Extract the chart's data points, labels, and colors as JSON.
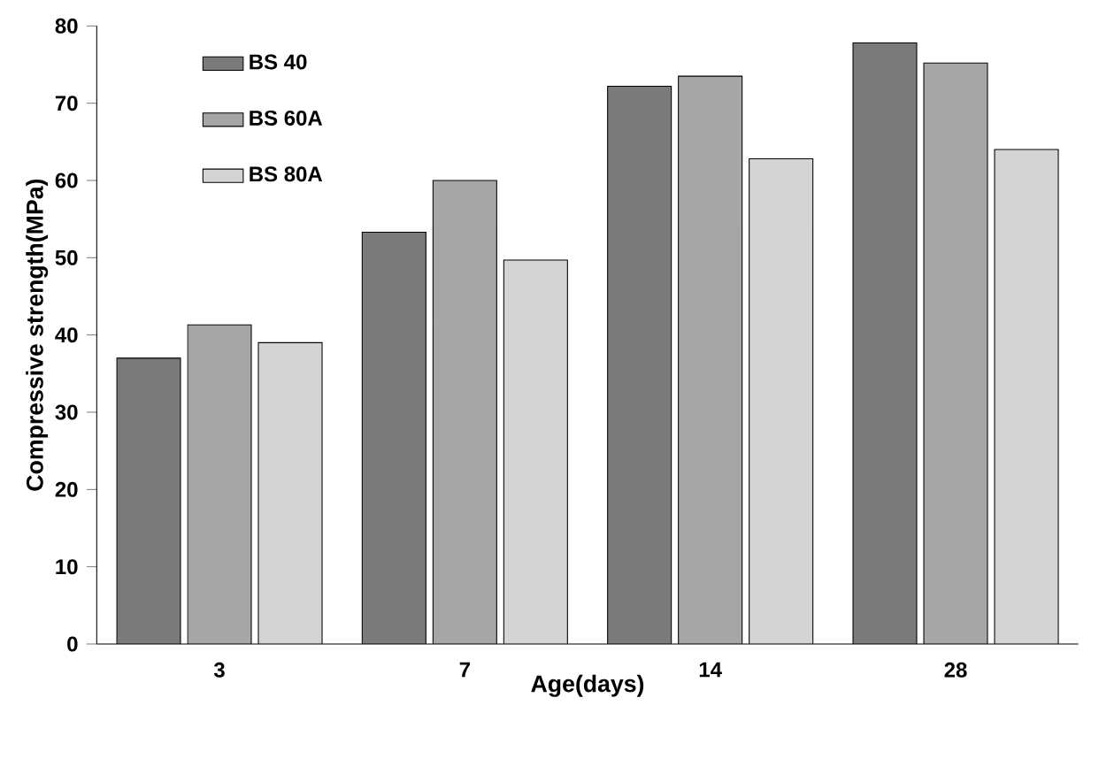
{
  "chart_data": {
    "type": "bar",
    "xlabel": "Age(days)",
    "ylabel": "Compressive strength(MPa)",
    "categories": [
      "3",
      "7",
      "14",
      "28"
    ],
    "series": [
      {
        "name": "BS 40",
        "color": "#7a7a7a",
        "values": [
          37,
          53.3,
          72.2,
          77.8
        ]
      },
      {
        "name": "BS 60A",
        "color": "#a6a6a6",
        "values": [
          41.3,
          60,
          73.5,
          75.2
        ]
      },
      {
        "name": "BS 80A",
        "color": "#d4d4d4",
        "values": [
          39,
          49.7,
          62.8,
          64
        ]
      }
    ],
    "ylim": [
      0,
      80
    ],
    "yticks": [
      0,
      10,
      20,
      30,
      40,
      50,
      60,
      70,
      80
    ],
    "grid": false,
    "legend": "top left"
  }
}
